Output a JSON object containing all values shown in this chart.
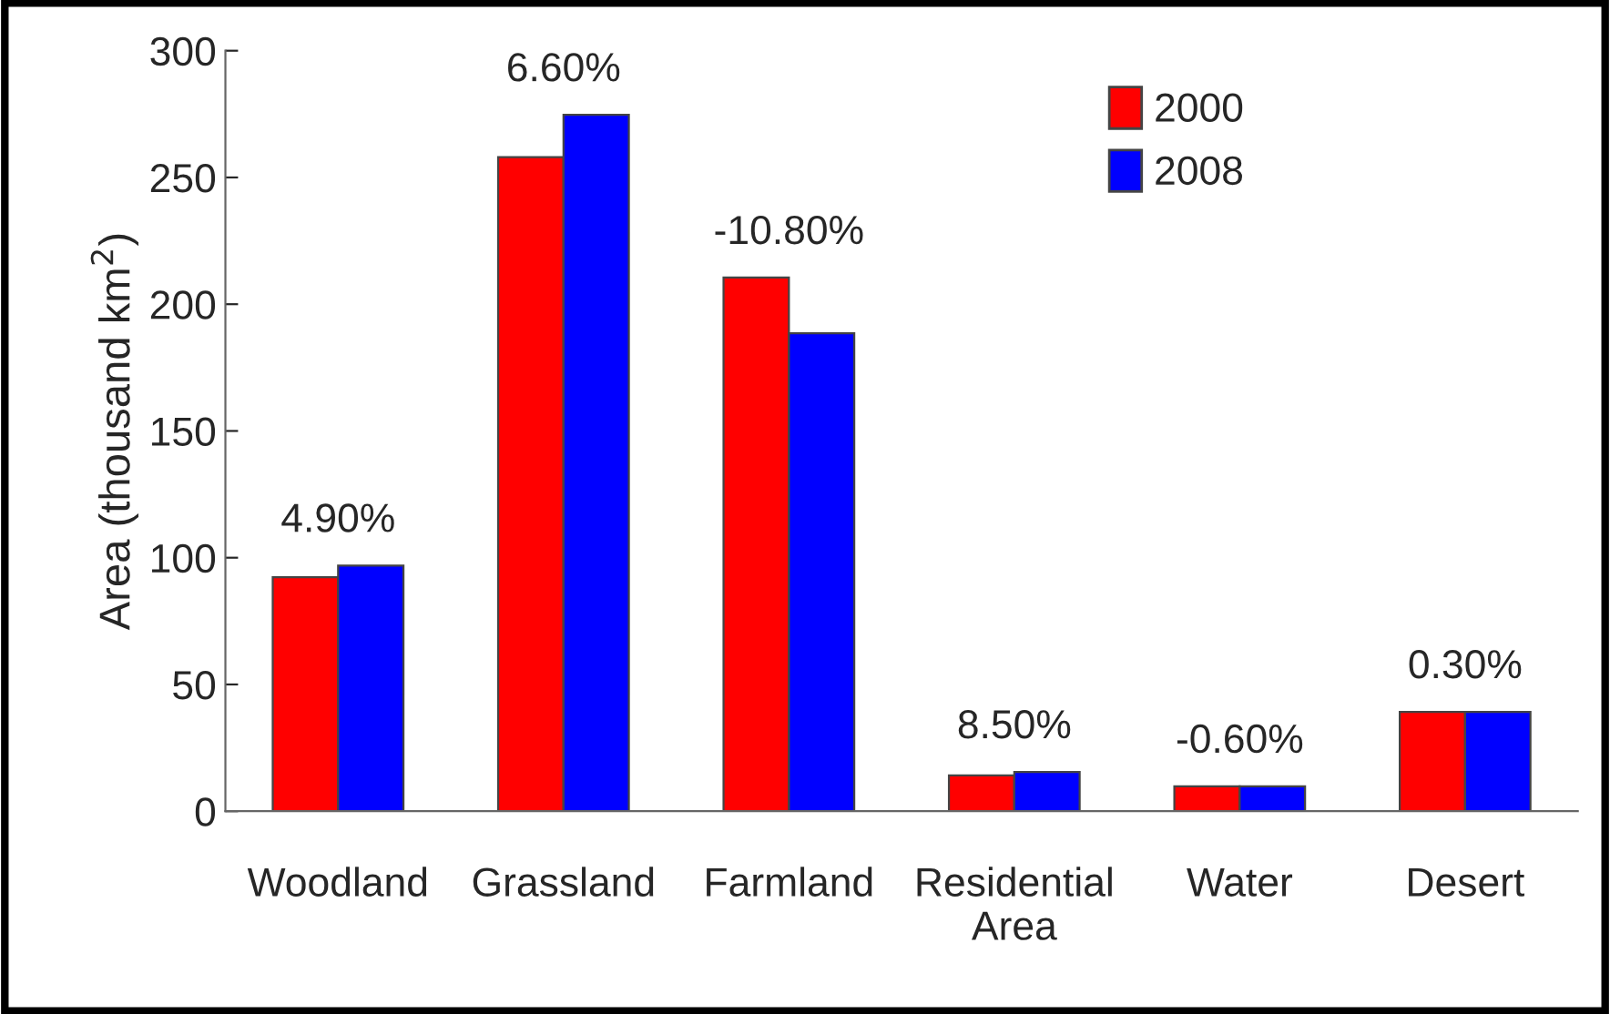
{
  "chart_data": {
    "type": "bar",
    "ylabel": "Area (thousand km$^{2}$)",
    "categories": [
      "Woodland",
      "Grassland",
      "Farmland",
      "Residential\nArea",
      "Water",
      "Desert"
    ],
    "series": [
      {
        "name": "2000",
        "color": "#ff0000",
        "values": [
          92.3,
          258,
          210.5,
          14.1,
          9.8,
          39.2
        ]
      },
      {
        "name": "2008",
        "color": "#0000ff",
        "values": [
          96.9,
          274.7,
          188.5,
          15.5,
          9.8,
          39.2
        ]
      }
    ],
    "ylim": [
      0,
      300
    ],
    "yticks": [
      0,
      50,
      100,
      150,
      200,
      250,
      300
    ],
    "grid": false,
    "legend": "top right",
    "annotations": [
      {
        "text": "4.90%",
        "x": "Woodland",
        "y": 96.9
      },
      {
        "text": "6.60%",
        "x": "Grassland",
        "y": 274.7
      },
      {
        "text": "-10.80%",
        "x": "Farmland",
        "y": 210.5
      },
      {
        "text": "8.50%",
        "x": "Residential\nArea",
        "y": 15.5
      },
      {
        "text": "-0.60%",
        "x": "Water",
        "y": 9.8
      },
      {
        "text": "0.30%",
        "x": "Desert",
        "y": 39.2
      }
    ]
  }
}
